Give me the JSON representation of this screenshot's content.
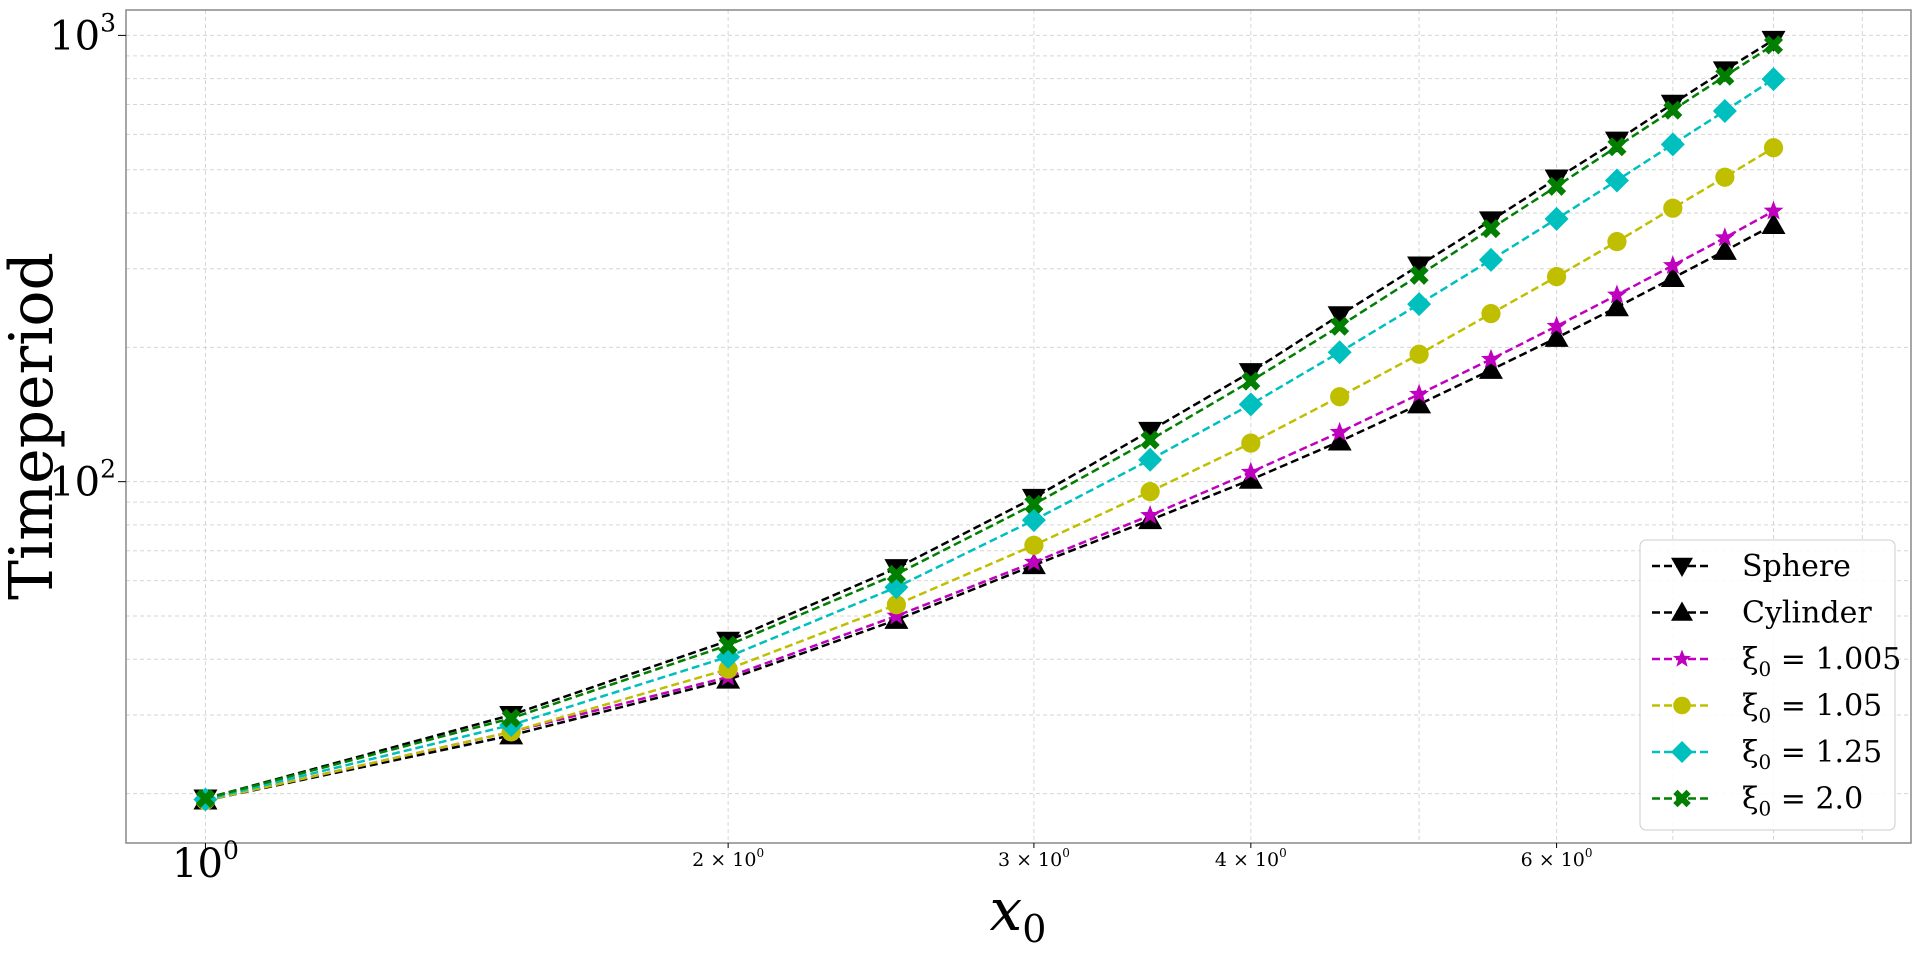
{
  "chart_data": {
    "type": "line",
    "xscale": "log",
    "yscale": "log",
    "xlabel": "x0",
    "ylabel": "Timeperiod",
    "xlim": [
      0.9,
      9.6
    ],
    "ylim": [
      15.5,
      1140
    ],
    "grid": true,
    "legend_position": "lower-right",
    "x_tick_labels": [
      {
        "value": 1,
        "base": "10",
        "exp": "0",
        "major": true
      },
      {
        "value": 2,
        "base": "2 × 10",
        "exp": "0",
        "major": false
      },
      {
        "value": 3,
        "base": "3 × 10",
        "exp": "0",
        "major": false
      },
      {
        "value": 4,
        "base": "4 × 10",
        "exp": "0",
        "major": false
      },
      {
        "value": 6,
        "base": "6 × 10",
        "exp": "0",
        "major": false
      }
    ],
    "y_tick_labels": [
      {
        "value": 100,
        "base": "10",
        "exp": "2"
      },
      {
        "value": 1000,
        "base": "10",
        "exp": "3"
      }
    ],
    "x": [
      1.0,
      1.5,
      2.0,
      2.5,
      3.0,
      3.5,
      4.0,
      4.5,
      5.0,
      5.5,
      6.0,
      6.5,
      7.0,
      7.5,
      8.0
    ],
    "series": [
      {
        "name": "Sphere",
        "label_main": "Sphere",
        "color": "#000000",
        "marker": "triangle-down",
        "values": [
          19.5,
          30,
          44,
          64,
          92,
          130,
          176,
          236,
          305,
          385,
          478,
          581,
          703,
          835,
          977
        ]
      },
      {
        "name": "Cylinder",
        "label_main": "Cylinder",
        "color": "#000000",
        "marker": "triangle-up",
        "values": [
          19.3,
          27,
          36,
          49,
          65,
          82,
          101,
          123,
          149,
          178,
          210,
          246,
          286,
          329,
          376
        ]
      },
      {
        "name": "ξ0 = 1.005",
        "label_main": "ξ",
        "label_sub": "0",
        "label_rest": " = 1.005",
        "color": "#bf00bf",
        "marker": "star",
        "values": [
          19.3,
          27.5,
          36.5,
          50,
          66,
          84,
          105,
          129,
          157,
          188,
          223,
          262,
          305,
          352,
          404
        ]
      },
      {
        "name": "ξ0 = 1.05",
        "label_main": "ξ",
        "label_sub": "0",
        "label_rest": " = 1.05",
        "color": "#bfbf00",
        "marker": "circle",
        "values": [
          19.3,
          27.5,
          38,
          53,
          72,
          95,
          122,
          155,
          193,
          238,
          288,
          345,
          410,
          481,
          560
        ]
      },
      {
        "name": "ξ0 = 1.25",
        "label_main": "ξ",
        "label_sub": "0",
        "label_rest": " = 1.25",
        "color": "#00bfbf",
        "marker": "diamond",
        "values": [
          19.4,
          28.5,
          40.5,
          58,
          82,
          112,
          149,
          195,
          250,
          314,
          388,
          473,
          570,
          677,
          798
        ]
      },
      {
        "name": "ξ0 = 2.0",
        "label_main": "ξ",
        "label_sub": "0",
        "label_rest": " = 2.0",
        "color": "#007f00",
        "marker": "x",
        "values": [
          19.5,
          29.5,
          43,
          62,
          89,
          124,
          168,
          223,
          290,
          369,
          459,
          563,
          680,
          810,
          952
        ]
      }
    ]
  }
}
